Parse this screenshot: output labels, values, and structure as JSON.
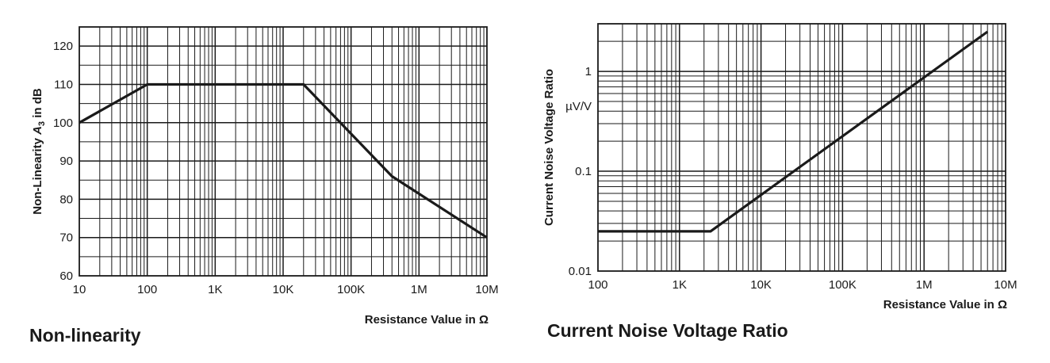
{
  "charts": {
    "nonlinearity": {
      "caption": "Non-linearity"
    },
    "noise": {
      "caption": "Current Noise Voltage Ratio"
    }
  },
  "chart_data": [
    {
      "type": "line",
      "xscale": "log",
      "xlim": [
        10,
        10000000
      ],
      "ylim": [
        60,
        125
      ],
      "grid": true,
      "xlabel": "Resistance Value in Ω",
      "ylabel_main": "Non-Linearity ",
      "ylabel_var": "A",
      "ylabel_sub": "3",
      "ylabel_tail": " in dB",
      "x_ticks": [
        10,
        100,
        1000,
        10000,
        100000,
        1000000,
        10000000
      ],
      "x_tick_labels": [
        "10",
        "100",
        "1K",
        "10K",
        "100K",
        "1M",
        "10M"
      ],
      "y_ticks": [
        60,
        70,
        80,
        90,
        100,
        110,
        120
      ],
      "y_tick_labels": [
        "60",
        "70",
        "80",
        "90",
        "100",
        "110",
        "120"
      ],
      "series": [
        {
          "x": [
            10,
            100,
            20000,
            400000,
            10000000
          ],
          "y": [
            100,
            110,
            110,
            86,
            70
          ]
        }
      ]
    },
    {
      "type": "line",
      "xscale": "log",
      "yscale": "log",
      "xlim": [
        100,
        10000000
      ],
      "ylim": [
        0.01,
        3
      ],
      "grid": true,
      "xlabel": "Resistance Value in Ω",
      "ylabel": "Current Noise Voltage Ratio",
      "yunit": "µV/V",
      "x_ticks": [
        100,
        1000,
        10000,
        100000,
        1000000,
        10000000
      ],
      "x_tick_labels": [
        "100",
        "1K",
        "10K",
        "100K",
        "1M",
        "10M"
      ],
      "y_ticks": [
        0.01,
        0.1,
        1
      ],
      "y_tick_labels": [
        "0.01",
        "0.1",
        "1"
      ],
      "series": [
        {
          "x": [
            100,
            2400,
            6000000
          ],
          "y": [
            0.025,
            0.025,
            2.5
          ]
        }
      ]
    }
  ]
}
